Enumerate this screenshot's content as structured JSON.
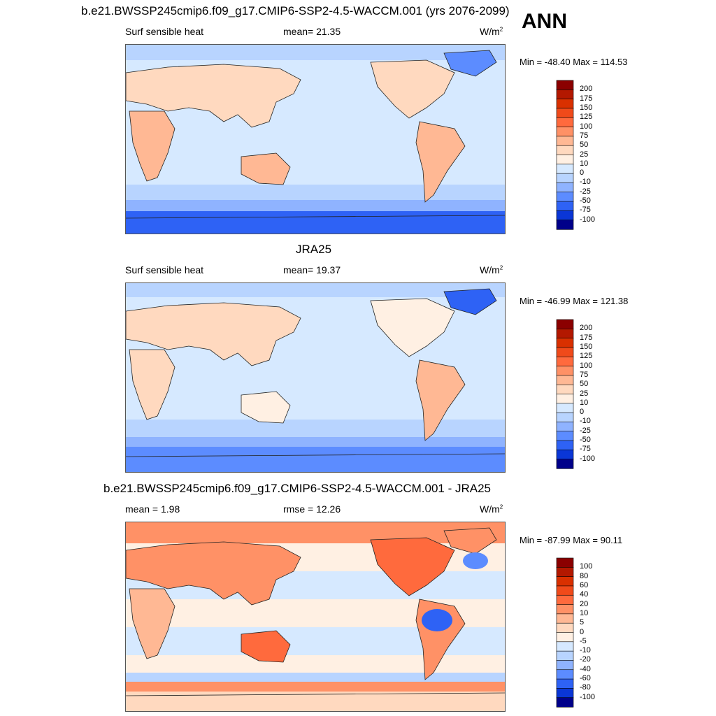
{
  "season": "ANN",
  "units_base": "W/m",
  "units_exp": "2",
  "panels": [
    {
      "title": "b.e21.BWSSP245cmip6.f09_g17.CMIP6-SSP2-4.5-WACCM.001 (yrs 2076-2099)",
      "left_label": "Surf sensible heat",
      "mid_label": "mean=  21.35",
      "minmax": "Min = -48.40 Max = 114.53"
    },
    {
      "title": "JRA25",
      "left_label": "Surf sensible heat",
      "mid_label": "mean=  19.37",
      "minmax": "Min = -46.99 Max = 121.38"
    },
    {
      "title": "b.e21.BWSSP245cmip6.f09_g17.CMIP6-SSP2-4.5-WACCM.001 - JRA25",
      "left_label": "mean =   1.98",
      "mid_label": "rmse =  12.26",
      "minmax": "Min = -87.99 Max =  90.11"
    }
  ],
  "chart_data": [
    {
      "type": "heatmap",
      "title": "b.e21.BWSSP245cmip6.f09_g17.CMIP6-SSP2-4.5-WACCM.001 (yrs 2076-2099)",
      "variable": "Surf sensible heat",
      "mean": 21.35,
      "min": -48.4,
      "max": 114.53,
      "units": "W/m2",
      "colorbar_levels": [
        "200",
        "175",
        "150",
        "125",
        "100",
        "75",
        "50",
        "25",
        "10",
        "0",
        "-10",
        "-25",
        "-50",
        "-75",
        "-100"
      ],
      "colorbar_colors": [
        "#8b0000",
        "#b31800",
        "#d93000",
        "#f04a1a",
        "#ff6a3d",
        "#ff9166",
        "#ffb894",
        "#ffd9bf",
        "#fff0e3",
        "#d6e9ff",
        "#b8d4ff",
        "#8fb3ff",
        "#5c8cff",
        "#2e62f5",
        "#0a36d6",
        "#00008a"
      ]
    },
    {
      "type": "heatmap",
      "title": "JRA25",
      "variable": "Surf sensible heat",
      "mean": 19.37,
      "min": -46.99,
      "max": 121.38,
      "units": "W/m2",
      "colorbar_levels": [
        "200",
        "175",
        "150",
        "125",
        "100",
        "75",
        "50",
        "25",
        "10",
        "0",
        "-10",
        "-25",
        "-50",
        "-75",
        "-100"
      ],
      "colorbar_colors": [
        "#8b0000",
        "#b31800",
        "#d93000",
        "#f04a1a",
        "#ff6a3d",
        "#ff9166",
        "#ffb894",
        "#ffd9bf",
        "#fff0e3",
        "#d6e9ff",
        "#b8d4ff",
        "#8fb3ff",
        "#5c8cff",
        "#2e62f5",
        "#0a36d6",
        "#00008a"
      ]
    },
    {
      "type": "heatmap",
      "title": "b.e21.BWSSP245cmip6.f09_g17.CMIP6-SSP2-4.5-WACCM.001 - JRA25",
      "mean": 1.98,
      "rmse": 12.26,
      "min": -87.99,
      "max": 90.11,
      "units": "W/m2",
      "colorbar_levels": [
        "100",
        "80",
        "60",
        "40",
        "20",
        "10",
        "5",
        "0",
        "-5",
        "-10",
        "-20",
        "-40",
        "-60",
        "-80",
        "-100"
      ],
      "colorbar_colors": [
        "#8b0000",
        "#b31800",
        "#d93000",
        "#f04a1a",
        "#ff6a3d",
        "#ff9166",
        "#ffb894",
        "#ffd9bf",
        "#fff0e3",
        "#d6e9ff",
        "#b8d4ff",
        "#8fb3ff",
        "#5c8cff",
        "#2e62f5",
        "#0a36d6",
        "#00008a"
      ]
    }
  ]
}
